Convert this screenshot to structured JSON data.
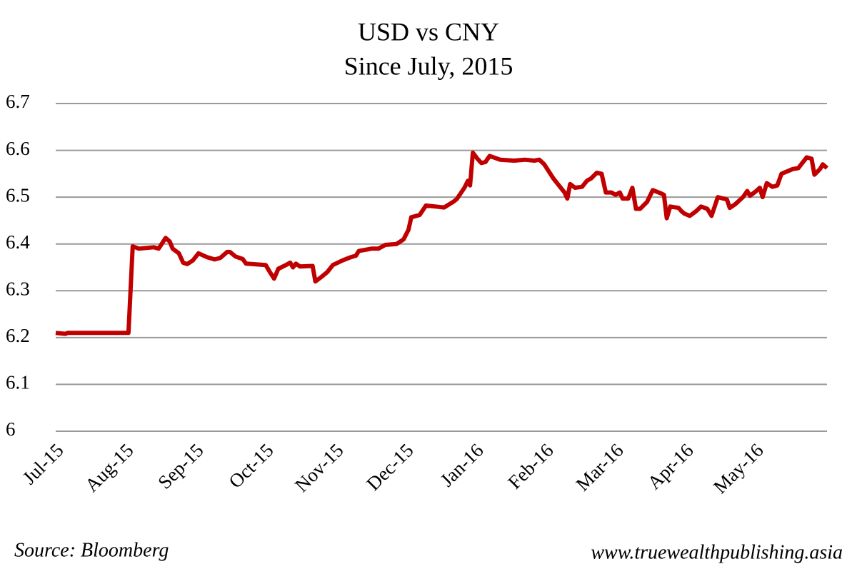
{
  "chart_data": {
    "type": "line",
    "title": "USD vs CNY",
    "subtitle": "Since July, 2015",
    "source": "Source: Bloomberg",
    "website": "www.truewealthpublishing.asia",
    "x": [
      0,
      0.14,
      0.17,
      1.04,
      1.1,
      1.19,
      1.4,
      1.47,
      1.57,
      1.63,
      1.67,
      1.76,
      1.82,
      1.88,
      1.96,
      2.04,
      2.16,
      2.27,
      2.35,
      2.45,
      2.49,
      2.57,
      2.67,
      2.72,
      3.0,
      3.06,
      3.12,
      3.18,
      3.29,
      3.35,
      3.39,
      3.43,
      3.49,
      3.67,
      3.71,
      3.8,
      3.88,
      3.96,
      4.1,
      4.22,
      4.29,
      4.33,
      4.51,
      4.61,
      4.71,
      4.87,
      4.97,
      5.04,
      5.08,
      5.2,
      5.29,
      5.43,
      5.55,
      5.68,
      5.73,
      5.84,
      5.89,
      5.92,
      5.96,
      6.02,
      6.08,
      6.14,
      6.2,
      6.35,
      6.55,
      6.7,
      6.84,
      6.91,
      6.98,
      7.11,
      7.27,
      7.31,
      7.35,
      7.42,
      7.52,
      7.59,
      7.65,
      7.73,
      7.8,
      7.86,
      7.94,
      8.0,
      8.06,
      8.1,
      8.18,
      8.24,
      8.29,
      8.35,
      8.45,
      8.53,
      8.65,
      8.69,
      8.73,
      8.78,
      8.9,
      8.94,
      8.98,
      9.06,
      9.15,
      9.22,
      9.31,
      9.37,
      9.46,
      9.59,
      9.63,
      9.71,
      9.82,
      9.88,
      9.92,
      10.0,
      10.06,
      10.1,
      10.16,
      10.24,
      10.31,
      10.37,
      10.53,
      10.61,
      10.73,
      10.8,
      10.84,
      10.92,
      10.96,
      11.02
    ],
    "series": [
      {
        "name": "USD/CNY",
        "color": "#c00000",
        "values": [
          6.21,
          6.208,
          6.21,
          6.21,
          6.395,
          6.39,
          6.393,
          6.39,
          6.413,
          6.405,
          6.39,
          6.38,
          6.36,
          6.357,
          6.365,
          6.38,
          6.372,
          6.367,
          6.37,
          6.383,
          6.383,
          6.373,
          6.368,
          6.358,
          6.355,
          6.34,
          6.326,
          6.347,
          6.355,
          6.36,
          6.35,
          6.358,
          6.352,
          6.353,
          6.32,
          6.33,
          6.34,
          6.355,
          6.365,
          6.372,
          6.375,
          6.385,
          6.39,
          6.39,
          6.398,
          6.4,
          6.41,
          6.43,
          6.457,
          6.462,
          6.482,
          6.48,
          6.478,
          6.49,
          6.496,
          6.52,
          6.535,
          6.525,
          6.595,
          6.583,
          6.573,
          6.575,
          6.588,
          6.58,
          6.578,
          6.58,
          6.578,
          6.58,
          6.57,
          6.54,
          6.51,
          6.497,
          6.528,
          6.52,
          6.522,
          6.535,
          6.54,
          6.552,
          6.55,
          6.51,
          6.51,
          6.505,
          6.51,
          6.497,
          6.497,
          6.52,
          6.475,
          6.475,
          6.49,
          6.515,
          6.508,
          6.505,
          6.455,
          6.48,
          6.477,
          6.47,
          6.465,
          6.46,
          6.47,
          6.48,
          6.475,
          6.46,
          6.5,
          6.495,
          6.477,
          6.485,
          6.5,
          6.513,
          6.503,
          6.512,
          6.52,
          6.5,
          6.53,
          6.522,
          6.525,
          6.55,
          6.56,
          6.562,
          6.585,
          6.582,
          6.548,
          6.56,
          6.57,
          6.562
        ]
      }
    ],
    "xlim": [
      0,
      11.02
    ],
    "xticks": [
      {
        "value": 0,
        "label": "Jul-15"
      },
      {
        "value": 1,
        "label": "Aug-15"
      },
      {
        "value": 2,
        "label": "Sep-15"
      },
      {
        "value": 3,
        "label": "Oct-15"
      },
      {
        "value": 4,
        "label": "Nov-15"
      },
      {
        "value": 5,
        "label": "Dec-15"
      },
      {
        "value": 6,
        "label": "Jan-16"
      },
      {
        "value": 7,
        "label": "Feb-16"
      },
      {
        "value": 8,
        "label": "Mar-16"
      },
      {
        "value": 9,
        "label": "Apr-16"
      },
      {
        "value": 10,
        "label": "May-16"
      }
    ],
    "ylim": [
      6,
      6.7
    ],
    "yticks": [
      6,
      6.1,
      6.2,
      6.3,
      6.4,
      6.5,
      6.6,
      6.7
    ],
    "grid": true
  }
}
